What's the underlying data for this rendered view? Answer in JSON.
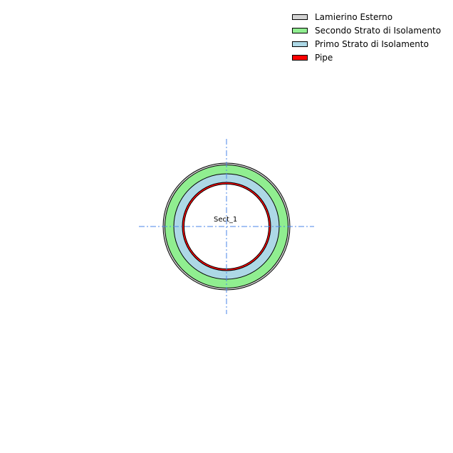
{
  "legend": {
    "items": [
      {
        "label": "Lamierino Esterno",
        "color": "#d3d3d3"
      },
      {
        "label": "Secondo Strato di Isolamento",
        "color": "#90ee90"
      },
      {
        "label": "Primo Strato di Isolamento",
        "color": "#add8e6"
      },
      {
        "label": "Pipe",
        "color": "#ff0000"
      }
    ]
  },
  "section": {
    "label": "Sect_1"
  },
  "axis_color": "#4a86e8"
}
